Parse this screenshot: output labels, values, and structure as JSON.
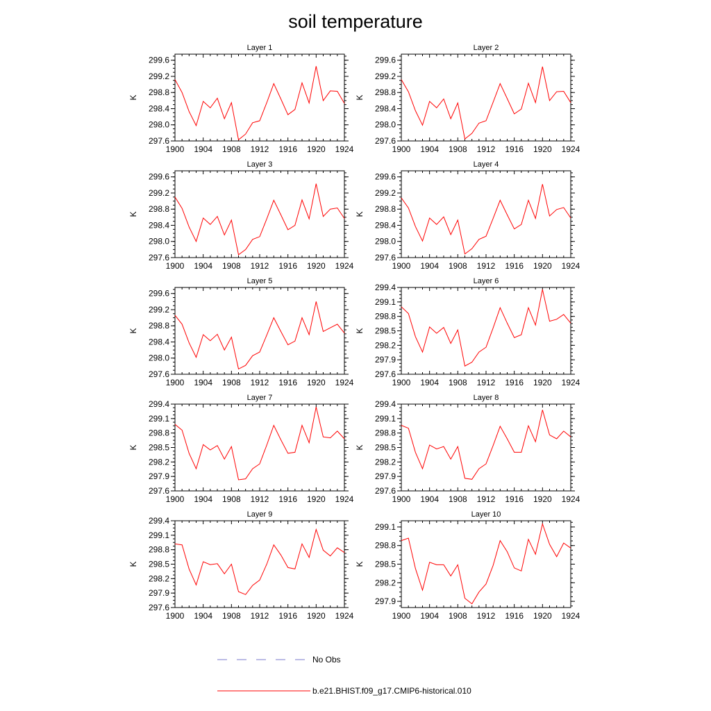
{
  "title": "soil temperature",
  "colors": {
    "model": "#ff0000",
    "obs": "#7777cc",
    "axis": "#000000"
  },
  "legend": {
    "obs_label": "No Obs",
    "model_label": "b.e21.BHIST.f09_g17.CMIP6-historical.010"
  },
  "chart_data": [
    {
      "type": "line",
      "title": "Layer 1",
      "ylabel": "K",
      "xlim": [
        1900,
        1924
      ],
      "ylim": [
        297.6,
        299.75
      ],
      "xticks": [
        "1900",
        "1904",
        "1908",
        "1912",
        "1916",
        "1920",
        "1924"
      ],
      "yticks": [
        "297.6",
        "298.0",
        "298.4",
        "298.8",
        "299.2",
        "299.6"
      ],
      "x": [
        1900,
        1901,
        1902,
        1903,
        1904,
        1905,
        1906,
        1907,
        1908,
        1909,
        1910,
        1911,
        1912,
        1913,
        1914,
        1915,
        1916,
        1917,
        1918,
        1919,
        1920,
        1921,
        1922,
        1923,
        1924
      ],
      "series": [
        {
          "name": "b.e21.BHIST.f09_g17.CMIP6-historical.010",
          "values": [
            299.12,
            298.8,
            298.33,
            297.98,
            298.58,
            298.42,
            298.66,
            298.15,
            298.55,
            297.63,
            297.77,
            298.05,
            298.1,
            298.55,
            299.02,
            298.64,
            298.25,
            298.38,
            299.04,
            298.54,
            299.45,
            298.6,
            298.84,
            298.83,
            298.53
          ]
        }
      ]
    },
    {
      "type": "line",
      "title": "Layer 2",
      "ylabel": "K",
      "xlim": [
        1900,
        1924
      ],
      "ylim": [
        297.6,
        299.75
      ],
      "xticks": [
        "1900",
        "1904",
        "1908",
        "1912",
        "1916",
        "1920",
        "1924"
      ],
      "yticks": [
        "297.6",
        "298.0",
        "298.4",
        "298.8",
        "299.2",
        "299.6"
      ],
      "x": [
        1900,
        1901,
        1902,
        1903,
        1904,
        1905,
        1906,
        1907,
        1908,
        1909,
        1910,
        1911,
        1912,
        1913,
        1914,
        1915,
        1916,
        1917,
        1918,
        1919,
        1920,
        1921,
        1922,
        1923,
        1924
      ],
      "series": [
        {
          "name": "b.e21.BHIST.f09_g17.CMIP6-historical.010",
          "values": [
            299.12,
            298.82,
            298.35,
            297.99,
            298.58,
            298.42,
            298.64,
            298.15,
            298.54,
            297.65,
            297.79,
            298.04,
            298.1,
            298.56,
            299.02,
            298.65,
            298.27,
            298.39,
            299.03,
            298.55,
            299.44,
            298.6,
            298.82,
            298.83,
            298.55
          ]
        }
      ]
    },
    {
      "type": "line",
      "title": "Layer 3",
      "ylabel": "K",
      "xlim": [
        1900,
        1924
      ],
      "ylim": [
        297.6,
        299.75
      ],
      "xticks": [
        "1900",
        "1904",
        "1908",
        "1912",
        "1916",
        "1920",
        "1924"
      ],
      "yticks": [
        "297.6",
        "298.0",
        "298.4",
        "298.8",
        "299.2",
        "299.6"
      ],
      "x": [
        1900,
        1901,
        1902,
        1903,
        1904,
        1905,
        1906,
        1907,
        1908,
        1909,
        1910,
        1911,
        1912,
        1913,
        1914,
        1915,
        1916,
        1917,
        1918,
        1919,
        1920,
        1921,
        1922,
        1923,
        1924
      ],
      "series": [
        {
          "name": "b.e21.BHIST.f09_g17.CMIP6-historical.010",
          "values": [
            299.1,
            298.82,
            298.36,
            298.0,
            298.58,
            298.42,
            298.62,
            298.16,
            298.53,
            297.67,
            297.8,
            298.05,
            298.12,
            298.56,
            299.02,
            298.66,
            298.29,
            298.4,
            299.03,
            298.56,
            299.43,
            298.62,
            298.8,
            298.83,
            298.57
          ]
        }
      ]
    },
    {
      "type": "line",
      "title": "Layer 4",
      "ylabel": "K",
      "xlim": [
        1900,
        1924
      ],
      "ylim": [
        297.6,
        299.75
      ],
      "xticks": [
        "1900",
        "1904",
        "1908",
        "1912",
        "1916",
        "1920",
        "1924"
      ],
      "yticks": [
        "297.6",
        "298.0",
        "298.4",
        "298.8",
        "299.2",
        "299.6"
      ],
      "x": [
        1900,
        1901,
        1902,
        1903,
        1904,
        1905,
        1906,
        1907,
        1908,
        1909,
        1910,
        1911,
        1912,
        1913,
        1914,
        1915,
        1916,
        1917,
        1918,
        1919,
        1920,
        1921,
        1922,
        1923,
        1924
      ],
      "series": [
        {
          "name": "b.e21.BHIST.f09_g17.CMIP6-historical.010",
          "values": [
            299.08,
            298.83,
            298.37,
            298.01,
            298.58,
            298.42,
            298.61,
            298.17,
            298.53,
            297.69,
            297.82,
            298.05,
            298.13,
            298.57,
            299.02,
            298.66,
            298.31,
            298.42,
            299.02,
            298.57,
            299.42,
            298.63,
            298.79,
            298.84,
            298.58
          ]
        }
      ]
    },
    {
      "type": "line",
      "title": "Layer 5",
      "ylabel": "K",
      "xlim": [
        1900,
        1924
      ],
      "ylim": [
        297.6,
        299.75
      ],
      "xticks": [
        "1900",
        "1904",
        "1908",
        "1912",
        "1916",
        "1920",
        "1924"
      ],
      "yticks": [
        "297.6",
        "298.0",
        "298.4",
        "298.8",
        "299.2",
        "299.6"
      ],
      "x": [
        1900,
        1901,
        1902,
        1903,
        1904,
        1905,
        1906,
        1907,
        1908,
        1909,
        1910,
        1911,
        1912,
        1913,
        1914,
        1915,
        1916,
        1917,
        1918,
        1919,
        1920,
        1921,
        1922,
        1923,
        1924
      ],
      "series": [
        {
          "name": "b.e21.BHIST.f09_g17.CMIP6-historical.010",
          "values": [
            299.06,
            298.84,
            298.38,
            298.02,
            298.58,
            298.43,
            298.59,
            298.2,
            298.52,
            297.73,
            297.82,
            298.06,
            298.15,
            298.57,
            299.0,
            298.66,
            298.33,
            298.42,
            299.0,
            298.58,
            299.4,
            298.66,
            298.75,
            298.84,
            298.62
          ]
        }
      ]
    },
    {
      "type": "line",
      "title": "Layer 6",
      "ylabel": "K",
      "xlim": [
        1900,
        1924
      ],
      "ylim": [
        297.6,
        299.4
      ],
      "xticks": [
        "1900",
        "1904",
        "1908",
        "1912",
        "1916",
        "1920",
        "1924"
      ],
      "yticks": [
        "297.6",
        "297.9",
        "298.2",
        "298.5",
        "298.8",
        "299.1",
        "299.4"
      ],
      "x": [
        1900,
        1901,
        1902,
        1903,
        1904,
        1905,
        1906,
        1907,
        1908,
        1909,
        1910,
        1911,
        1912,
        1913,
        1914,
        1915,
        1916,
        1917,
        1918,
        1919,
        1920,
        1921,
        1922,
        1923,
        1924
      ],
      "series": [
        {
          "name": "b.e21.BHIST.f09_g17.CMIP6-historical.010",
          "values": [
            299.0,
            298.86,
            298.38,
            298.06,
            298.58,
            298.45,
            298.57,
            298.24,
            298.52,
            297.77,
            297.85,
            298.06,
            298.16,
            298.56,
            298.98,
            298.66,
            298.36,
            298.42,
            298.98,
            298.62,
            299.36,
            298.7,
            298.74,
            298.84,
            298.66
          ]
        }
      ]
    },
    {
      "type": "line",
      "title": "Layer 7",
      "ylabel": "K",
      "xlim": [
        1900,
        1924
      ],
      "ylim": [
        297.6,
        299.4
      ],
      "xticks": [
        "1900",
        "1904",
        "1908",
        "1912",
        "1916",
        "1920",
        "1924"
      ],
      "yticks": [
        "297.6",
        "297.9",
        "298.2",
        "298.5",
        "298.8",
        "299.1",
        "299.4"
      ],
      "x": [
        1900,
        1901,
        1902,
        1903,
        1904,
        1905,
        1906,
        1907,
        1908,
        1909,
        1910,
        1911,
        1912,
        1913,
        1914,
        1915,
        1916,
        1917,
        1918,
        1919,
        1920,
        1921,
        1922,
        1923,
        1924
      ],
      "series": [
        {
          "name": "b.e21.BHIST.f09_g17.CMIP6-historical.010",
          "values": [
            298.98,
            298.86,
            298.38,
            298.06,
            298.56,
            298.45,
            298.54,
            298.26,
            298.52,
            297.83,
            297.85,
            298.06,
            298.16,
            298.55,
            298.96,
            298.66,
            298.38,
            298.4,
            298.96,
            298.6,
            299.34,
            298.72,
            298.7,
            298.84,
            298.68
          ]
        }
      ]
    },
    {
      "type": "line",
      "title": "Layer 8",
      "ylabel": "K",
      "xlim": [
        1900,
        1924
      ],
      "ylim": [
        297.6,
        299.4
      ],
      "xticks": [
        "1900",
        "1904",
        "1908",
        "1912",
        "1916",
        "1920",
        "1924"
      ],
      "yticks": [
        "297.6",
        "297.9",
        "298.2",
        "298.5",
        "298.8",
        "299.1",
        "299.4"
      ],
      "x": [
        1900,
        1901,
        1902,
        1903,
        1904,
        1905,
        1906,
        1907,
        1908,
        1909,
        1910,
        1911,
        1912,
        1913,
        1914,
        1915,
        1916,
        1917,
        1918,
        1919,
        1920,
        1921,
        1922,
        1923,
        1924
      ],
      "series": [
        {
          "name": "b.e21.BHIST.f09_g17.CMIP6-historical.010",
          "values": [
            298.96,
            298.9,
            298.4,
            298.06,
            298.55,
            298.47,
            298.52,
            298.26,
            298.52,
            297.86,
            297.84,
            298.06,
            298.16,
            298.54,
            298.94,
            298.68,
            298.4,
            298.4,
            298.95,
            298.62,
            299.28,
            298.76,
            298.68,
            298.84,
            298.72
          ]
        }
      ]
    },
    {
      "type": "line",
      "title": "Layer 9",
      "ylabel": "K",
      "xlim": [
        1900,
        1924
      ],
      "ylim": [
        297.6,
        299.4
      ],
      "xticks": [
        "1900",
        "1904",
        "1908",
        "1912",
        "1916",
        "1920",
        "1924"
      ],
      "yticks": [
        "297.6",
        "297.9",
        "298.2",
        "298.5",
        "298.8",
        "299.1",
        "299.4"
      ],
      "x": [
        1900,
        1901,
        1902,
        1903,
        1904,
        1905,
        1906,
        1907,
        1908,
        1909,
        1910,
        1911,
        1912,
        1913,
        1914,
        1915,
        1916,
        1917,
        1918,
        1919,
        1920,
        1921,
        1922,
        1923,
        1924
      ],
      "series": [
        {
          "name": "b.e21.BHIST.f09_g17.CMIP6-historical.010",
          "values": [
            298.92,
            298.9,
            298.4,
            298.07,
            298.55,
            298.49,
            298.51,
            298.3,
            298.5,
            297.93,
            297.87,
            298.06,
            298.17,
            298.5,
            298.9,
            298.69,
            298.43,
            298.4,
            298.92,
            298.64,
            299.22,
            298.79,
            298.67,
            298.84,
            298.74
          ]
        }
      ]
    },
    {
      "type": "line",
      "title": "Layer 10",
      "ylabel": "K",
      "xlim": [
        1900,
        1924
      ],
      "ylim": [
        297.8,
        299.2
      ],
      "xticks": [
        "1900",
        "1904",
        "1908",
        "1912",
        "1916",
        "1920",
        "1924"
      ],
      "yticks": [
        "297.9",
        "298.2",
        "298.5",
        "298.8",
        "299.1"
      ],
      "x": [
        1900,
        1901,
        1902,
        1903,
        1904,
        1905,
        1906,
        1907,
        1908,
        1909,
        1910,
        1911,
        1912,
        1913,
        1914,
        1915,
        1916,
        1917,
        1918,
        1919,
        1920,
        1921,
        1922,
        1923,
        1924
      ],
      "series": [
        {
          "name": "b.e21.BHIST.f09_g17.CMIP6-historical.010",
          "values": [
            298.88,
            298.92,
            298.43,
            298.08,
            298.53,
            298.49,
            298.49,
            298.31,
            298.49,
            297.95,
            297.86,
            298.05,
            298.18,
            298.48,
            298.88,
            298.7,
            298.44,
            298.39,
            298.9,
            298.66,
            299.15,
            298.82,
            298.62,
            298.84,
            298.76
          ]
        }
      ]
    }
  ]
}
